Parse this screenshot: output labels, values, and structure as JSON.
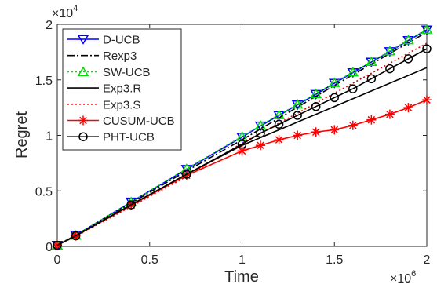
{
  "chart_data": {
    "type": "line",
    "xlabel": "Time",
    "ylabel": "Regret",
    "x_exponent_label": "×10",
    "x_exponent": "6",
    "y_exponent_label": "×10",
    "y_exponent": "4",
    "xlim": [
      0,
      2000000
    ],
    "ylim": [
      0,
      20000
    ],
    "xticks": [
      0,
      500000,
      1000000,
      1500000,
      2000000
    ],
    "xtick_labels": [
      "0",
      "0.5",
      "1",
      "1.5",
      "2"
    ],
    "yticks": [
      0,
      5000,
      10000,
      15000,
      20000
    ],
    "ytick_labels": [
      "0",
      "0.5",
      "1",
      "1.5",
      "2"
    ],
    "grid": false,
    "legend_position": "top-left",
    "series": [
      {
        "name": "D-UCB",
        "color": "#0000ff",
        "dash": "solid",
        "marker": "triangle-down",
        "x": [
          0,
          100000,
          400000,
          700000,
          1000000,
          1100000,
          1200000,
          1300000,
          1400000,
          1500000,
          1600000,
          1700000,
          1800000,
          1900000,
          2000000
        ],
        "y": [
          100,
          1000,
          4000,
          6950,
          9850,
          10850,
          11800,
          12750,
          13700,
          14700,
          15650,
          16600,
          17550,
          18550,
          19500
        ]
      },
      {
        "name": "Rexp3",
        "color": "#000000",
        "dash": "dashdot",
        "marker": "none",
        "x": [
          0,
          100000,
          400000,
          700000,
          1000000,
          1500000,
          2000000
        ],
        "y": [
          100,
          1000,
          3900,
          6800,
          9600,
          14500,
          19300
        ]
      },
      {
        "name": "SW-UCB",
        "color": "#00dd00",
        "dash": "dotted",
        "marker": "triangle-up",
        "x": [
          0,
          100000,
          400000,
          700000,
          1000000,
          1100000,
          1200000,
          1300000,
          1400000,
          1500000,
          1600000,
          1700000,
          1800000,
          1900000,
          2000000
        ],
        "y": [
          100,
          1000,
          4000,
          7000,
          9900,
          10900,
          11850,
          12800,
          13750,
          14750,
          15700,
          16650,
          17600,
          18600,
          19550
        ]
      },
      {
        "name": "Exp3.R",
        "color": "#000000",
        "dash": "solid",
        "marker": "none",
        "x": [
          0,
          100000,
          400000,
          700000,
          1000000,
          1500000,
          2000000
        ],
        "y": [
          100,
          950,
          3750,
          6500,
          9100,
          12600,
          16100
        ]
      },
      {
        "name": "Exp3.S",
        "color": "#dd0000",
        "dash": "dotted",
        "marker": "none",
        "x": [
          0,
          100000,
          400000,
          700000,
          1000000,
          1500000,
          2000000
        ],
        "y": [
          100,
          900,
          3600,
          6300,
          9300,
          13800,
          18300
        ]
      },
      {
        "name": "CUSUM-UCB",
        "color": "#ff0000",
        "dash": "solid",
        "marker": "asterisk",
        "x": [
          0,
          100000,
          400000,
          700000,
          1000000,
          1100000,
          1200000,
          1300000,
          1400000,
          1500000,
          1600000,
          1700000,
          1800000,
          1900000,
          2000000
        ],
        "y": [
          100,
          950,
          3700,
          6400,
          8600,
          9100,
          9600,
          10000,
          10300,
          10500,
          10900,
          11400,
          11900,
          12500,
          13200
        ]
      },
      {
        "name": "PHT-UCB",
        "color": "#000000",
        "dash": "solid",
        "marker": "circle",
        "x": [
          0,
          100000,
          400000,
          700000,
          1000000,
          1100000,
          1200000,
          1300000,
          1400000,
          1500000,
          1600000,
          1700000,
          1800000,
          1900000,
          2000000
        ],
        "y": [
          100,
          950,
          3750,
          6500,
          9200,
          10200,
          11000,
          11800,
          12600,
          13400,
          14200,
          15100,
          16000,
          16900,
          17800
        ]
      }
    ]
  }
}
